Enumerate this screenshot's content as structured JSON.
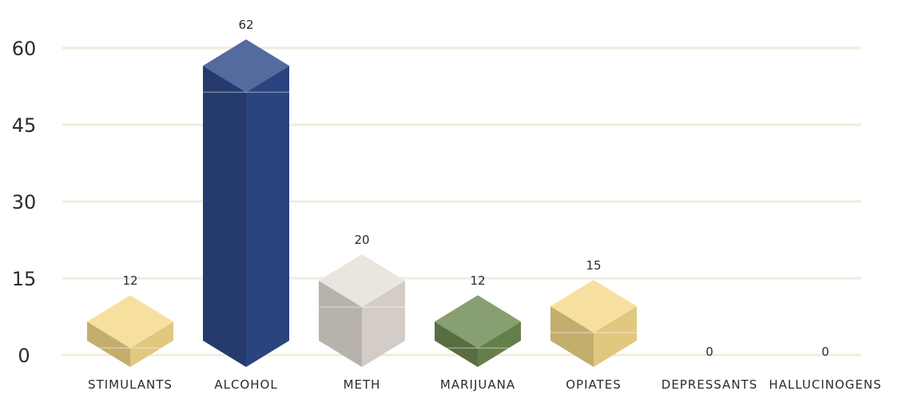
{
  "chart_data": {
    "type": "bar",
    "style": "3d-cube",
    "categories": [
      "STIMULANTS",
      "ALCOHOL",
      "METH",
      "MARIJUANA",
      "OPIATES",
      "DEPRESSANTS",
      "HALLUCINOGENS"
    ],
    "values": [
      12,
      62,
      20,
      12,
      15,
      0,
      0
    ],
    "data_labels": [
      "12",
      "62",
      "20",
      "12",
      "15",
      "0",
      "0"
    ],
    "colors": [
      "#f5d98a",
      "#2e4a8a",
      "#e6dfd8",
      "#6e8a52",
      "#f5d98a",
      "",
      ""
    ],
    "yticks": [
      0,
      15,
      30,
      45,
      60
    ],
    "ytick_labels": [
      "0",
      "15",
      "30",
      "45",
      "60"
    ],
    "ylim": [
      0,
      62
    ],
    "grid": true,
    "title": "",
    "xlabel": "",
    "ylabel": ""
  }
}
